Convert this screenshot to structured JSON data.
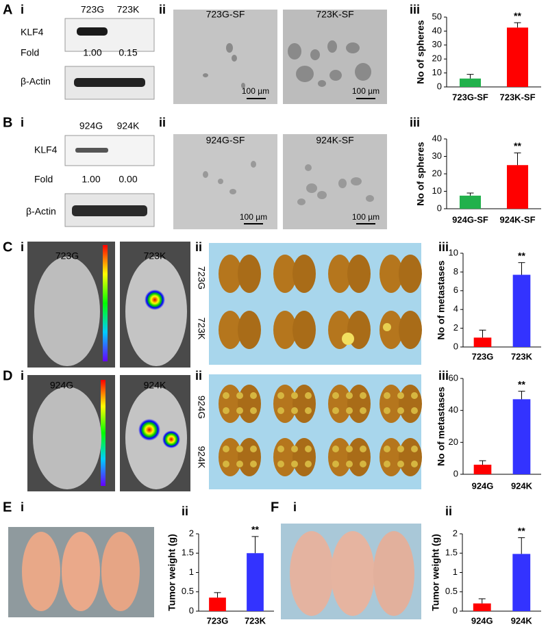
{
  "panels": [
    {
      "letter": "A",
      "parts": [
        "i",
        "ii",
        "iii"
      ],
      "blot": {
        "lanes": [
          "723G",
          "723K"
        ],
        "target": "KLF4",
        "fold_label": "Fold",
        "folds": [
          "1.00",
          "0.15"
        ],
        "control": "β-Actin"
      },
      "images": [
        "723G-SF",
        "723K-SF"
      ],
      "scale_bar": "100 µm"
    },
    {
      "letter": "B",
      "parts": [
        "i",
        "ii",
        "iii"
      ],
      "blot": {
        "lanes": [
          "924G",
          "924K"
        ],
        "target": "KLF4",
        "fold_label": "Fold",
        "folds": [
          "1.00",
          "0.00"
        ],
        "control": "β-Actin"
      },
      "images": [
        "924G-SF",
        "924K-SF"
      ],
      "scale_bar": "100 µm"
    },
    {
      "letter": "C",
      "parts": [
        "i",
        "ii",
        "iii"
      ],
      "imaging": [
        "723G",
        "723K"
      ],
      "lung_rows": [
        "723G",
        "723K"
      ]
    },
    {
      "letter": "D",
      "parts": [
        "i",
        "ii",
        "iii"
      ],
      "imaging": [
        "924G",
        "924K"
      ],
      "lung_rows": [
        "924G",
        "924K"
      ]
    },
    {
      "letter": "E",
      "parts": [
        "i",
        "ii"
      ]
    },
    {
      "letter": "F",
      "parts": [
        "i",
        "ii"
      ]
    }
  ],
  "chart_data": [
    {
      "type": "bar",
      "ylabel": "No of spheres",
      "categories": [
        "723G-SF",
        "723K-SF"
      ],
      "values": [
        6,
        42.5
      ],
      "errors": [
        3,
        3.5
      ],
      "colors": [
        "#22b14c",
        "#ff0000"
      ],
      "annotations": [
        null,
        "**"
      ],
      "ylim": [
        0,
        50
      ],
      "yticks": [
        0,
        10,
        20,
        30,
        40,
        50
      ]
    },
    {
      "type": "bar",
      "ylabel": "No of spheres",
      "categories": [
        "924G-SF",
        "924K-SF"
      ],
      "values": [
        7.5,
        25
      ],
      "errors": [
        1.5,
        7
      ],
      "colors": [
        "#22b14c",
        "#ff0000"
      ],
      "annotations": [
        null,
        "**"
      ],
      "ylim": [
        0,
        40
      ],
      "yticks": [
        0,
        10,
        20,
        30,
        40
      ]
    },
    {
      "type": "bar",
      "ylabel": "No of metastases",
      "categories": [
        "723G",
        "723K"
      ],
      "values": [
        1,
        7.7
      ],
      "errors": [
        0.8,
        1.3
      ],
      "colors": [
        "#ff0000",
        "#3333ff"
      ],
      "annotations": [
        null,
        "**"
      ],
      "ylim": [
        0,
        10
      ],
      "yticks": [
        0,
        2,
        4,
        6,
        8,
        10
      ]
    },
    {
      "type": "bar",
      "ylabel": "No of metastases",
      "categories": [
        "924G",
        "924K"
      ],
      "values": [
        6,
        47
      ],
      "errors": [
        2.5,
        5
      ],
      "colors": [
        "#ff0000",
        "#3333ff"
      ],
      "annotations": [
        null,
        "**"
      ],
      "ylim": [
        0,
        60
      ],
      "yticks": [
        0,
        20,
        40,
        60
      ]
    },
    {
      "type": "bar",
      "ylabel": "Tumor weight (g)",
      "categories": [
        "723G",
        "723K"
      ],
      "values": [
        0.35,
        1.5
      ],
      "errors": [
        0.13,
        0.43
      ],
      "colors": [
        "#ff0000",
        "#3333ff"
      ],
      "annotations": [
        null,
        "**"
      ],
      "ylim": [
        0,
        2
      ],
      "yticks": [
        0,
        0.5,
        1,
        1.5,
        2
      ]
    },
    {
      "type": "bar",
      "ylabel": "Tumor weight (g)",
      "categories": [
        "924G",
        "924K"
      ],
      "values": [
        0.2,
        1.48
      ],
      "errors": [
        0.12,
        0.42
      ],
      "colors": [
        "#ff0000",
        "#3333ff"
      ],
      "annotations": [
        null,
        "**"
      ],
      "ylim": [
        0,
        2
      ],
      "yticks": [
        0,
        0.5,
        1,
        1.5,
        2
      ]
    }
  ]
}
